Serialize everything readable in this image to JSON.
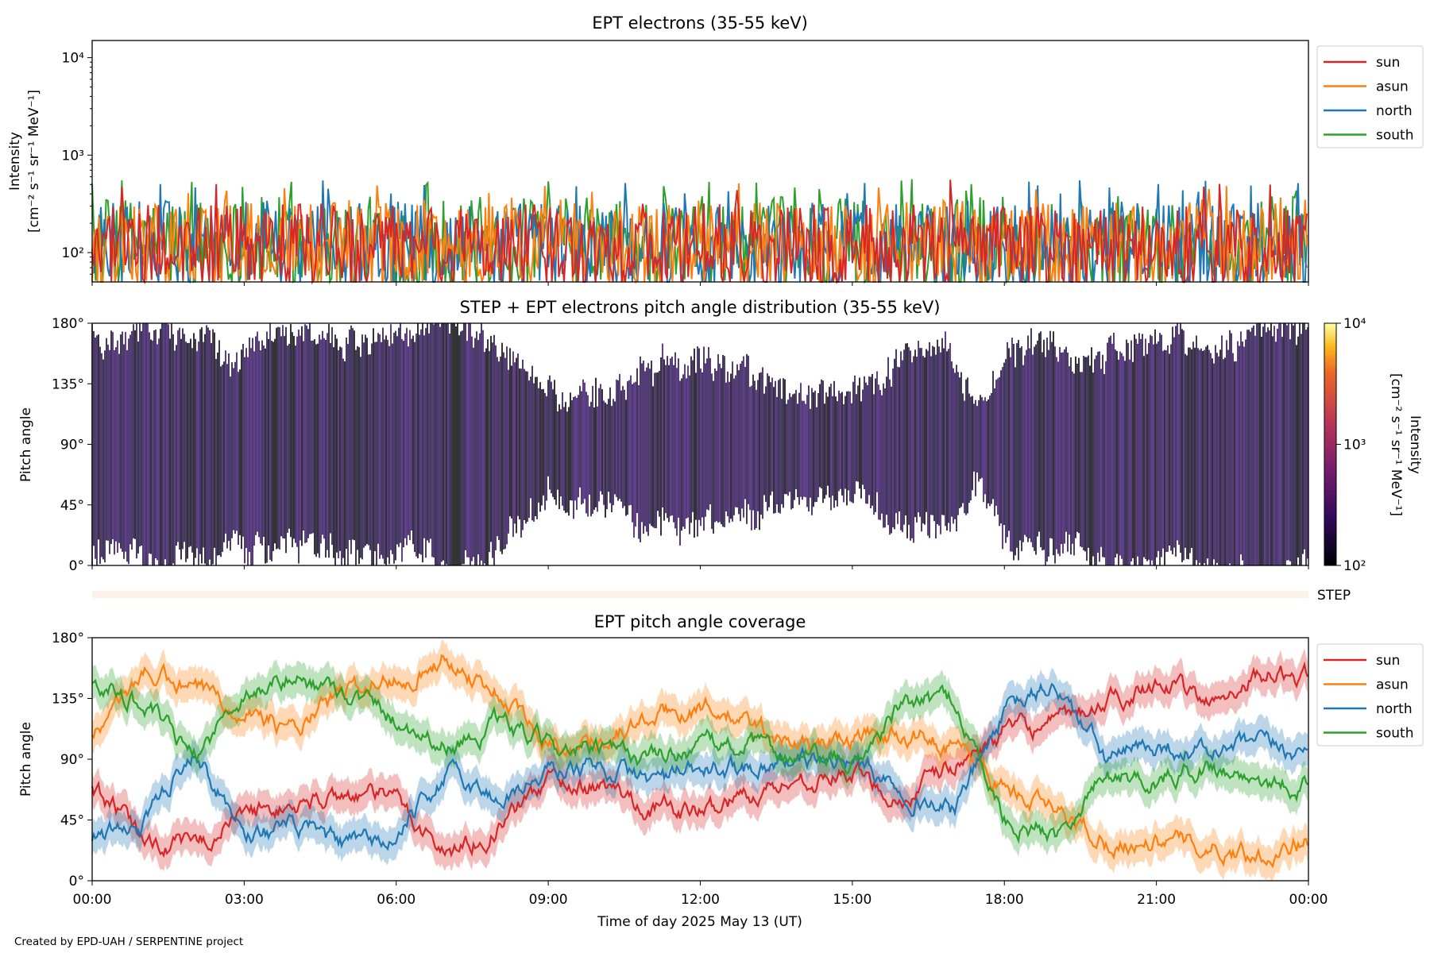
{
  "footer": "Created by EPD-UAH / SERPENTINE project",
  "xlabel": "Time of day 2025 May 13 (UT)",
  "xticks": [
    "00:00",
    "03:00",
    "06:00",
    "09:00",
    "12:00",
    "15:00",
    "18:00",
    "21:00",
    "00:00"
  ],
  "legend": [
    "sun",
    "asun",
    "north",
    "south"
  ],
  "colors": {
    "sun": "#d62728",
    "asun": "#ff7f0e",
    "north": "#1f77b4",
    "south": "#2ca02c"
  },
  "step_label": "STEP",
  "chart_data": [
    {
      "type": "line",
      "title": "EPT electrons (35-55 keV)",
      "ylabel": "Intensity",
      "ylabel_units": "[cm⁻² s⁻¹ sr⁻¹ MeV⁻¹]",
      "yscale": "log",
      "ylim": [
        50,
        15000
      ],
      "yticks": [
        "10²",
        "10³",
        "10⁴"
      ],
      "xlim_hours": [
        0,
        24
      ],
      "legend_placement": "outside-right",
      "series": [
        {
          "name": "sun",
          "typical_range": [
            50,
            320
          ],
          "max": 620
        },
        {
          "name": "asun",
          "typical_range": [
            50,
            350
          ],
          "max": 520
        },
        {
          "name": "north",
          "typical_range": [
            50,
            340
          ],
          "max": 560
        },
        {
          "name": "south",
          "typical_range": [
            50,
            380
          ],
          "max": 590
        }
      ]
    },
    {
      "type": "heatmap",
      "title": "STEP + EPT electrons pitch angle distribution (35-55 keV)",
      "ylabel": "Pitch angle",
      "yticks": [
        "0°",
        "45°",
        "90°",
        "135°",
        "180°"
      ],
      "ylim": [
        0,
        180
      ],
      "colorbar": {
        "label": "Intensity",
        "units": "[cm⁻² s⁻¹ sr⁻¹ MeV⁻¹]",
        "scale": "log",
        "range": [
          100,
          10000
        ],
        "ticks": [
          "10²",
          "10³",
          "10⁴"
        ],
        "colormap": "inferno"
      },
      "typical_value": 150
    },
    {
      "type": "line",
      "title": "EPT pitch angle coverage",
      "ylabel": "Pitch angle",
      "yticks": [
        "0°",
        "45°",
        "90°",
        "135°",
        "180°"
      ],
      "ylim": [
        0,
        180
      ],
      "x_hours": [
        0,
        1,
        2,
        3,
        4,
        5,
        6,
        7,
        8,
        9,
        10,
        11,
        12,
        13,
        14,
        15,
        16,
        17,
        18,
        19,
        20,
        21,
        22,
        23,
        24
      ],
      "legend_placement": "outside-right",
      "series": [
        {
          "name": "sun",
          "values": [
            70,
            30,
            25,
            50,
            55,
            65,
            60,
            20,
            40,
            75,
            70,
            55,
            50,
            65,
            75,
            80,
            60,
            85,
            110,
            115,
            130,
            150,
            130,
            155,
            150
          ]
        },
        {
          "name": "asun",
          "values": [
            110,
            155,
            140,
            130,
            110,
            140,
            150,
            165,
            140,
            100,
            105,
            120,
            130,
            115,
            100,
            105,
            110,
            100,
            70,
            50,
            30,
            30,
            25,
            20,
            30
          ]
        },
        {
          "name": "north",
          "values": [
            30,
            40,
            100,
            35,
            40,
            25,
            30,
            80,
            60,
            80,
            85,
            75,
            80,
            85,
            90,
            90,
            70,
            50,
            125,
            145,
            90,
            100,
            95,
            100,
            95
          ]
        },
        {
          "name": "south",
          "values": [
            150,
            130,
            90,
            140,
            150,
            140,
            120,
            100,
            115,
            100,
            95,
            90,
            100,
            100,
            90,
            85,
            130,
            135,
            45,
            35,
            80,
            75,
            85,
            75,
            70
          ]
        }
      ],
      "band_halfwidth_deg": 12
    }
  ]
}
